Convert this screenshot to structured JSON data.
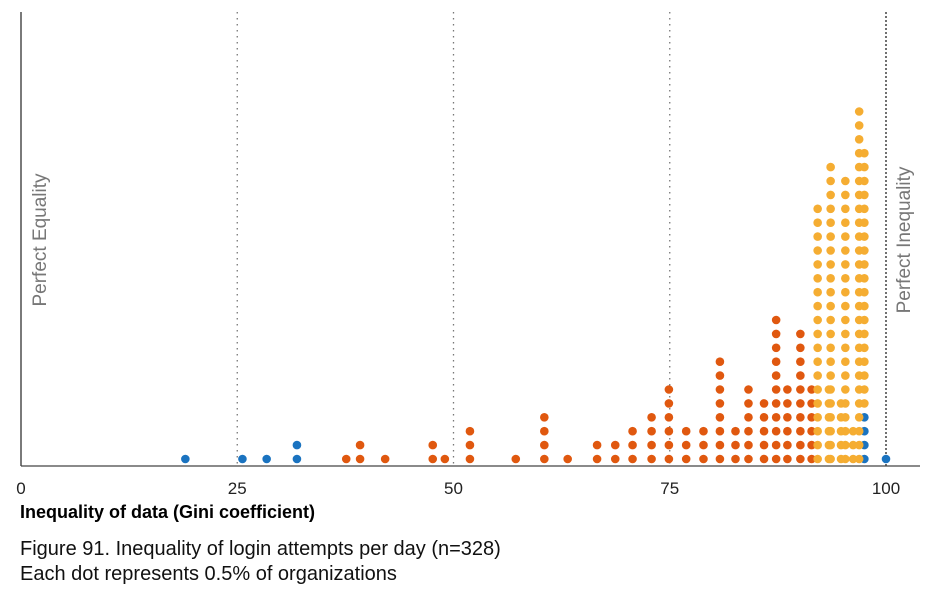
{
  "chart_data": {
    "type": "dot-histogram",
    "xlabel": "Inequality of data (Gini coefficient)",
    "xlim": [
      0,
      100
    ],
    "xticks": [
      "0",
      "25",
      "50",
      "75",
      "100"
    ],
    "reference_lines": [
      25,
      50,
      75,
      100
    ],
    "side_labels": {
      "left": "Perfect Equality",
      "right": "Perfect Inequality"
    },
    "unit_note": "Each dot represents 0.5% of organizations",
    "colors": {
      "blue": "#1a73c0",
      "orange": "#e0580f",
      "yellow": "#f5ad32"
    },
    "series": [
      {
        "color": "blue",
        "points": [
          [
            19,
            1
          ],
          [
            25.6,
            1
          ],
          [
            28.4,
            1
          ],
          [
            31.9,
            2
          ],
          [
            97.5,
            4
          ],
          [
            100,
            1
          ]
        ]
      },
      {
        "color": "orange",
        "points": [
          [
            37.6,
            1
          ],
          [
            39.2,
            2
          ],
          [
            42.1,
            1
          ],
          [
            47.6,
            2
          ],
          [
            49,
            1
          ],
          [
            51.9,
            3
          ],
          [
            57.2,
            1
          ],
          [
            60.5,
            4
          ],
          [
            63.2,
            1
          ],
          [
            66.6,
            2
          ],
          [
            68.7,
            2
          ],
          [
            70.7,
            3
          ],
          [
            72.9,
            4
          ],
          [
            74.9,
            6
          ],
          [
            76.9,
            3
          ],
          [
            78.9,
            3
          ],
          [
            80.8,
            8
          ],
          [
            82.6,
            3
          ],
          [
            84.1,
            6
          ],
          [
            85.9,
            5
          ],
          [
            87.3,
            11
          ],
          [
            88.6,
            6
          ],
          [
            90.1,
            10
          ],
          [
            91.4,
            6
          ]
        ]
      },
      {
        "color": "yellow",
        "stacked_on_orange": true,
        "points": [
          [
            92.1,
            6
          ],
          [
            93.4,
            6
          ],
          [
            94.8,
            5
          ],
          [
            96.2,
            3
          ],
          [
            97.5,
            1
          ]
        ]
      },
      {
        "color": "yellow",
        "points": [
          [
            92.1,
            13
          ],
          [
            93.6,
            22
          ],
          [
            95.3,
            21
          ],
          [
            96.9,
            26
          ],
          [
            97.5,
            18
          ]
        ]
      }
    ]
  },
  "caption": {
    "line1": "Figure 91. Inequality of login attempts per day (n=328)",
    "line2": "Each dot represents 0.5% of organizations"
  }
}
